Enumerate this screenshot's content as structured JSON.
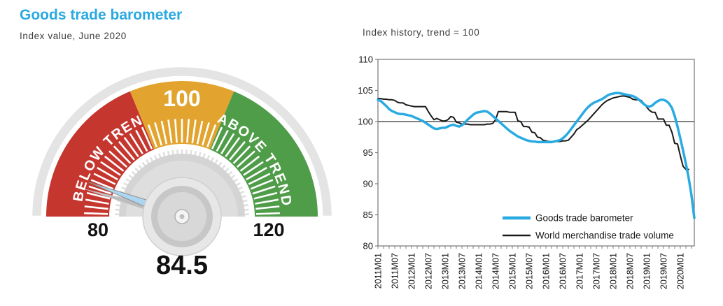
{
  "page": {
    "title": "Goods trade barometer",
    "subtitle": "Index value, June 2020"
  },
  "colors": {
    "accent_cyan": "#29abe2",
    "series_black": "#1a1a1a",
    "gauge_red": "#c5362e",
    "gauge_orange": "#e2a42f",
    "gauge_green": "#4f9c49",
    "gauge_ring_gray": "#e4e4e4",
    "needle_blue": "#abd5f0",
    "axis_gray": "#7f7f7f"
  },
  "chart_data": [
    {
      "type": "gauge",
      "title": "Goods trade barometer",
      "subtitle": "Index value, June 2020",
      "min": 80,
      "max": 120,
      "value": 84.5,
      "value_label": "84.5",
      "min_label": "80",
      "max_label": "120",
      "top_label": "100",
      "below_label": "BELOW TREND",
      "above_label": "ABOVE TREND",
      "segments": [
        {
          "from": 80,
          "to": 95,
          "color": "#c5362e"
        },
        {
          "from": 95,
          "to": 105,
          "color": "#e2a42f"
        },
        {
          "from": 105,
          "to": 120,
          "color": "#4f9c49"
        }
      ]
    },
    {
      "type": "line",
      "title": "Index history, trend = 100",
      "x_start": "2011M01",
      "x_end": "2020M06",
      "months_total": 114,
      "x_tick_labels": [
        "2011M01",
        "2011M07",
        "2012M01",
        "2012M07",
        "2013M01",
        "2013M07",
        "2014M01",
        "2014M07",
        "2015M01",
        "2015M07",
        "2016M01",
        "2016M07",
        "2017M01",
        "2017M07",
        "2018M01",
        "2018M07",
        "2019M01",
        "2019M07",
        "2020M01"
      ],
      "x_tick_month_step": 6,
      "ylim": [
        80,
        110
      ],
      "yticks": [
        110,
        105,
        100,
        95,
        90,
        85,
        80
      ],
      "reference_line": 100,
      "legend_position": "inside-bottom-right",
      "series": [
        {
          "name": "Goods trade barometer",
          "color": "#29abe2",
          "width": 3.5,
          "values": [
            103.5,
            103.3,
            102.9,
            102.5,
            102.0,
            101.7,
            101.5,
            101.3,
            101.2,
            101.2,
            101.1,
            101.0,
            100.9,
            100.7,
            100.5,
            100.3,
            100.1,
            99.8,
            99.5,
            99.2,
            98.9,
            98.8,
            98.9,
            99.0,
            99.0,
            99.2,
            99.4,
            99.5,
            99.3,
            99.2,
            99.4,
            99.8,
            100.3,
            100.7,
            101.1,
            101.4,
            101.5,
            101.6,
            101.7,
            101.6,
            101.3,
            100.9,
            100.5,
            100.1,
            99.7,
            99.3,
            98.9,
            98.5,
            98.2,
            97.9,
            97.6,
            97.4,
            97.2,
            97.0,
            96.9,
            96.8,
            96.8,
            96.7,
            96.7,
            96.7,
            96.7,
            96.7,
            96.7,
            96.8,
            96.9,
            97.0,
            97.3,
            97.7,
            98.2,
            98.8,
            99.4,
            100.0,
            100.6,
            101.2,
            101.8,
            102.3,
            102.7,
            103.0,
            103.2,
            103.4,
            103.6,
            103.9,
            104.2,
            104.4,
            104.5,
            104.6,
            104.6,
            104.5,
            104.4,
            104.3,
            104.2,
            104.1,
            103.9,
            103.6,
            103.2,
            102.8,
            102.5,
            102.4,
            102.6,
            103.0,
            103.3,
            103.5,
            103.5,
            103.3,
            102.9,
            102.2,
            100.9,
            99.2,
            97.3,
            95.3,
            93.2,
            90.9,
            88.1,
            84.5
          ]
        },
        {
          "name": "World merchandise trade volume",
          "color": "#1a1a1a",
          "width": 2,
          "values": [
            103.7,
            103.7,
            103.6,
            103.6,
            103.5,
            103.5,
            103.4,
            103.1,
            103.0,
            103.0,
            102.7,
            102.6,
            102.5,
            102.4,
            102.4,
            102.4,
            102.4,
            102.4,
            101.6,
            100.9,
            100.3,
            100.5,
            100.3,
            100.1,
            100.1,
            100.3,
            100.8,
            100.7,
            99.9,
            99.8,
            99.6,
            99.6,
            99.6,
            99.5,
            99.5,
            99.5,
            99.5,
            99.5,
            99.5,
            99.6,
            99.6,
            99.7,
            100.3,
            101.6,
            101.6,
            101.6,
            101.6,
            101.5,
            101.5,
            101.5,
            100.1,
            100.0,
            99.2,
            99.2,
            99.1,
            98.3,
            98.2,
            97.5,
            97.4,
            97.0,
            96.9,
            96.8,
            96.8,
            96.8,
            96.8,
            96.8,
            96.9,
            96.9,
            97.0,
            97.5,
            98.0,
            98.7,
            99.0,
            99.4,
            99.8,
            100.2,
            100.7,
            101.2,
            101.7,
            102.2,
            102.7,
            103.1,
            103.4,
            103.6,
            103.8,
            103.9,
            104.0,
            104.1,
            104.1,
            104.0,
            103.9,
            103.6,
            103.5,
            103.5,
            103.4,
            102.9,
            102.3,
            101.8,
            101.5,
            101.5,
            100.4,
            100.4,
            100.4,
            99.4,
            99.4,
            98.3,
            96.5,
            96.4,
            94.5,
            92.8,
            92.3,
            92.3,
            null,
            null
          ]
        }
      ]
    }
  ]
}
